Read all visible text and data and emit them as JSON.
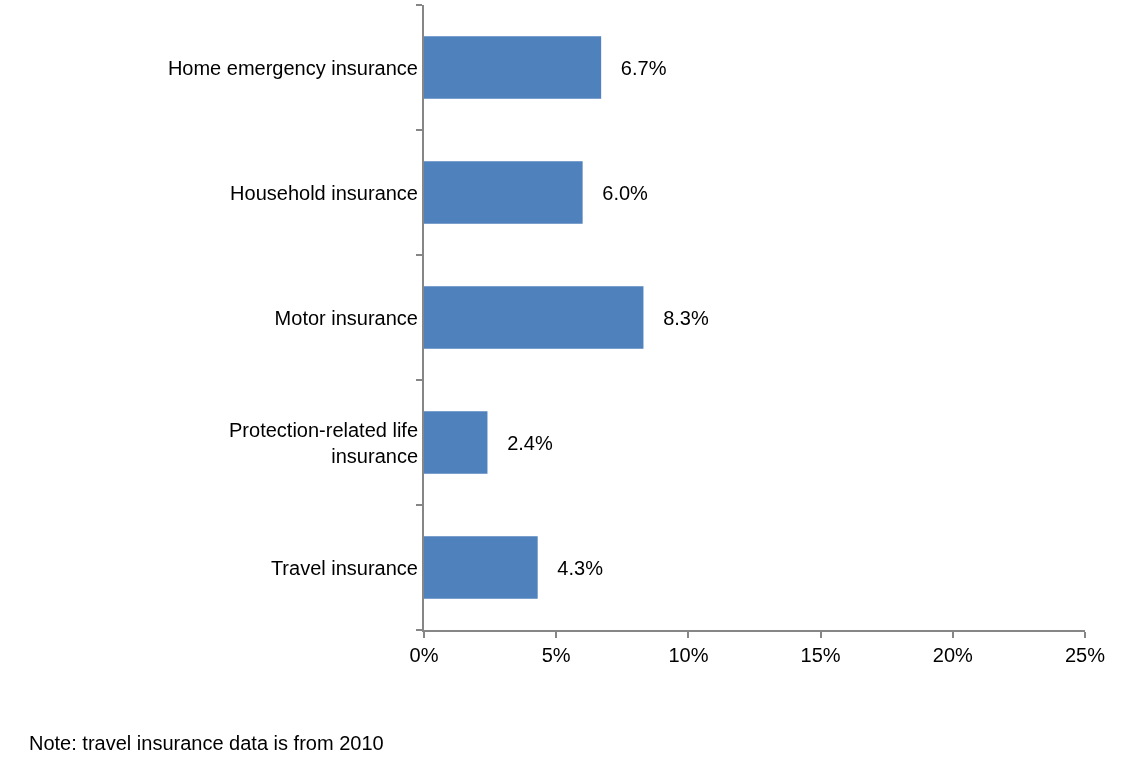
{
  "chart_data": {
    "type": "bar",
    "orientation": "horizontal",
    "categories": [
      "Home emergency insurance",
      "Household insurance",
      "Motor insurance",
      "Protection-related life insurance",
      "Travel insurance"
    ],
    "values": [
      6.7,
      6.0,
      8.3,
      2.4,
      4.3
    ],
    "value_labels": [
      "6.7%",
      "6.0%",
      "8.3%",
      "2.4%",
      "4.3%"
    ],
    "color": "#4f81bd",
    "xlim": [
      0,
      25
    ],
    "xticks": [
      {
        "value": 0,
        "label": "0%"
      },
      {
        "value": 5,
        "label": "5%"
      },
      {
        "value": 10,
        "label": "10%"
      },
      {
        "value": 15,
        "label": "15%"
      },
      {
        "value": 20,
        "label": "20%"
      },
      {
        "value": 25,
        "label": "25%"
      }
    ],
    "legend": false,
    "annotations": [
      "Note: travel insurance data is from 2010"
    ]
  }
}
